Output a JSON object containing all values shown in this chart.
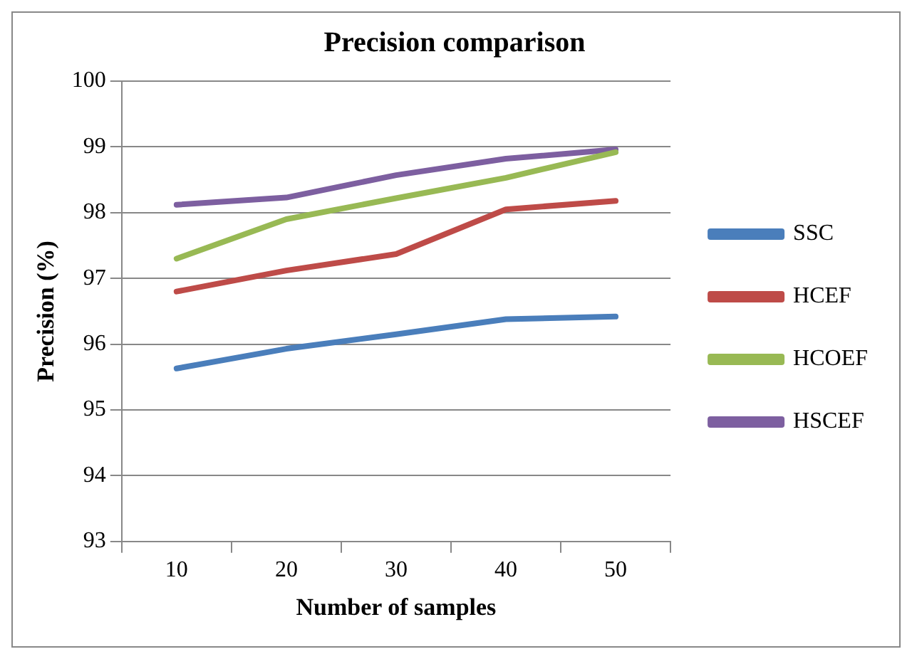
{
  "chart_data": {
    "type": "line",
    "title": "Precision comparison",
    "xlabel": "Number of samples",
    "ylabel": "Precision (%)",
    "categories": [
      "10",
      "20",
      "30",
      "40",
      "50"
    ],
    "series": [
      {
        "name": "SSC",
        "color": "#4a7ebb",
        "values": [
          95.63,
          95.93,
          96.15,
          96.38,
          96.42
        ]
      },
      {
        "name": "HCEF",
        "color": "#be4b48",
        "values": [
          96.8,
          97.12,
          97.37,
          98.05,
          98.18
        ]
      },
      {
        "name": "HCOEF",
        "color": "#98b954",
        "values": [
          97.3,
          97.9,
          98.22,
          98.53,
          98.92
        ]
      },
      {
        "name": "HSCEF",
        "color": "#7d5fa0",
        "values": [
          98.12,
          98.23,
          98.57,
          98.82,
          98.96
        ]
      }
    ],
    "ylim": [
      93,
      100
    ],
    "yticks": [
      93,
      94,
      95,
      96,
      97,
      98,
      99,
      100
    ],
    "grid": "y",
    "legend": "right",
    "marker": "none",
    "line_style": "solid"
  }
}
